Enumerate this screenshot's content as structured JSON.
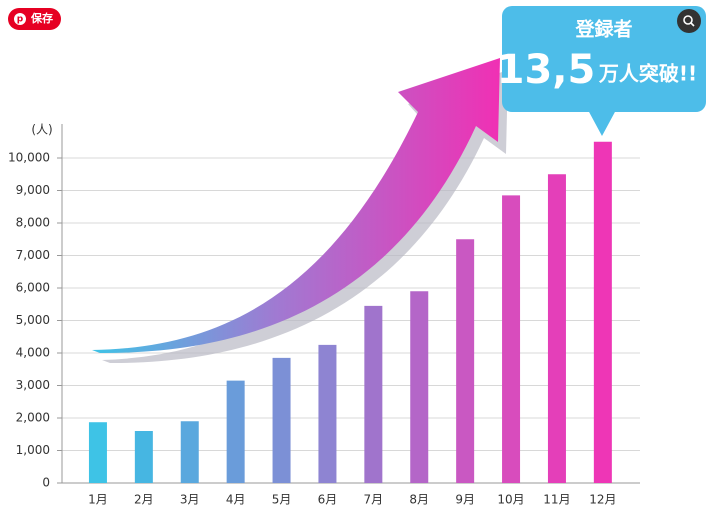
{
  "overlay": {
    "save_button": "保存"
  },
  "chart_data": {
    "type": "bar",
    "y_unit_label": "(人)",
    "categories": [
      "1月",
      "2月",
      "3月",
      "4月",
      "5月",
      "6月",
      "7月",
      "8月",
      "9月",
      "10月",
      "11月",
      "12月"
    ],
    "values": [
      1870,
      1600,
      1900,
      3150,
      3850,
      4250,
      5450,
      5900,
      7500,
      8850,
      9500,
      10500
    ],
    "colors": [
      "#3ec3e6",
      "#46b6e2",
      "#5aa8de",
      "#6a9cda",
      "#7c90d6",
      "#8e84d2",
      "#a074cc",
      "#b466c8",
      "#c958c2",
      "#d84cbd",
      "#e43fb9",
      "#ee36b6"
    ],
    "ylim": [
      0,
      11000
    ],
    "yticks": [
      0,
      {
        "value": 1000,
        "label": "1,000"
      },
      {
        "value": 2000,
        "label": "2,000"
      },
      {
        "value": 3000,
        "label": "3,000"
      },
      {
        "value": 4000,
        "label": "4,000"
      },
      {
        "value": 5000,
        "label": "5,000"
      },
      {
        "value": 6000,
        "label": "6,000"
      },
      {
        "value": 7000,
        "label": "7,000"
      },
      {
        "value": 8000,
        "label": "8,000"
      },
      {
        "value": 9000,
        "label": "9,000"
      },
      {
        "value": 10000,
        "label": "10,000"
      }
    ],
    "grid": true,
    "annotation": {
      "title": "登録者",
      "number": "13,5",
      "text": "万人突破!!"
    }
  }
}
